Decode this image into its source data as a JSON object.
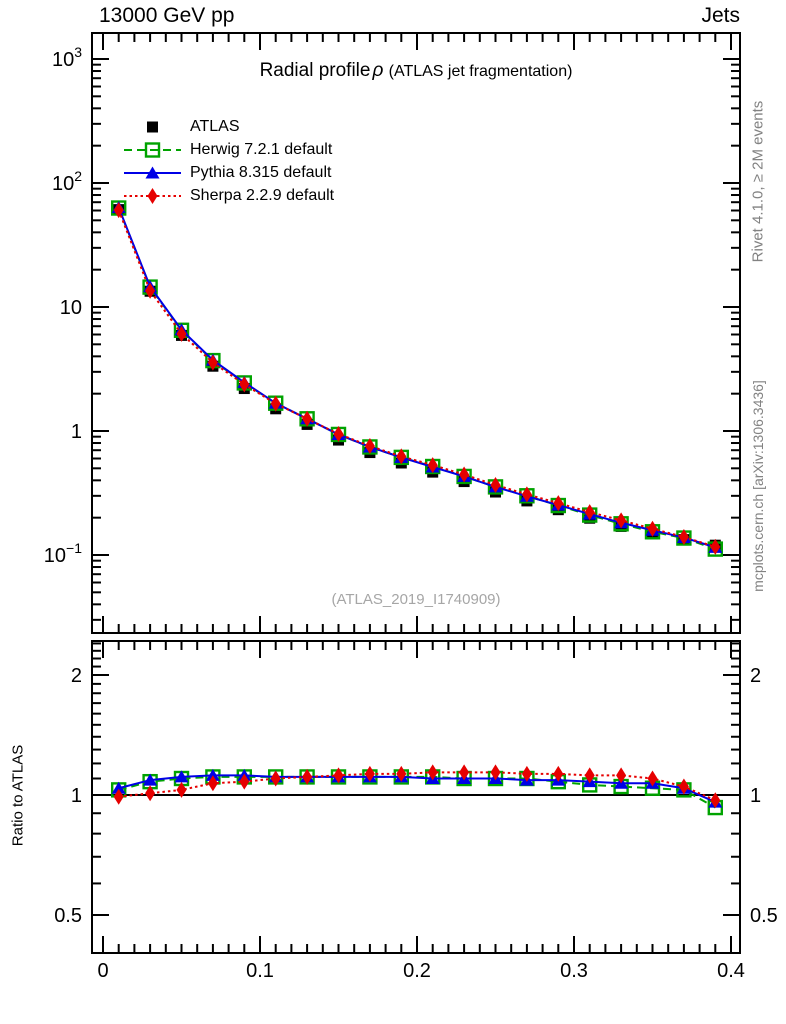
{
  "header": {
    "left": "13000 GeV pp",
    "right": "Jets"
  },
  "plot_title": {
    "main": "Radial profile",
    "symbol": "ρ",
    "paren": "(ATLAS jet fragmentation)"
  },
  "watermark": "(ATLAS_2019_I1740909)",
  "side_notes": {
    "rivet": "Rivet 4.1.0, ≥ 2M events",
    "mcplots": "mcplots.cern.ch [arXiv:1306.3436]"
  },
  "legend": {
    "items": [
      {
        "label": "ATLAS",
        "color": "#000000",
        "marker": "square-filled",
        "line": "none"
      },
      {
        "label": "Herwig 7.2.1 default",
        "color": "#00a300",
        "marker": "square-open",
        "line": "dashed"
      },
      {
        "label": "Pythia 8.315 default",
        "color": "#0000e6",
        "marker": "triangle-filled",
        "line": "solid"
      },
      {
        "label": "Sherpa 2.2.9 default",
        "color": "#e60000",
        "marker": "diamond-filled",
        "line": "dotted"
      }
    ]
  },
  "chart_data": {
    "type": "line",
    "title": "Radial profile ρ (ATLAS jet fragmentation)",
    "xlabel": "",
    "ylabel": "",
    "yscale": "log",
    "ylim": [
      0.0235,
      1620
    ],
    "xlim": [
      -0.007,
      0.4057
    ],
    "x": [
      0.01,
      0.03,
      0.05,
      0.07,
      0.09,
      0.11,
      0.13,
      0.15,
      0.17,
      0.19,
      0.21,
      0.23,
      0.25,
      0.27,
      0.29,
      0.31,
      0.33,
      0.35,
      0.37,
      0.39
    ],
    "xticks": [
      {
        "value": 0.0,
        "label": "0"
      },
      {
        "value": 0.1,
        "label": "0.1"
      },
      {
        "value": 0.2,
        "label": "0.2"
      },
      {
        "value": 0.3,
        "label": "0.3"
      },
      {
        "value": 0.4,
        "label": "0.4"
      }
    ],
    "x_minor_step": 0.01,
    "yticks": [
      {
        "value": 1000,
        "base": "10",
        "exp": "3"
      },
      {
        "value": 100,
        "base": "10",
        "exp": "2"
      },
      {
        "value": 10,
        "base": "10",
        "exp": ""
      },
      {
        "value": 1,
        "base": "1",
        "exp": ""
      },
      {
        "value": 0.1,
        "base": "10",
        "exp": "−1"
      }
    ],
    "series": [
      {
        "name": "ATLAS",
        "color": "#000000",
        "marker": "square-filled",
        "line": "none",
        "values": [
          61,
          13.4,
          5.9,
          3.33,
          2.2,
          1.51,
          1.13,
          0.845,
          0.67,
          0.552,
          0.466,
          0.391,
          0.322,
          0.273,
          0.232,
          0.198,
          0.17,
          0.148,
          0.133,
          0.12
        ]
      },
      {
        "name": "Herwig 7.2.1 default",
        "color": "#00a300",
        "marker": "square-open",
        "line": "dashed",
        "ratio_to_atlas": [
          1.03,
          1.08,
          1.1,
          1.11,
          1.11,
          1.11,
          1.11,
          1.11,
          1.11,
          1.11,
          1.11,
          1.1,
          1.1,
          1.1,
          1.08,
          1.06,
          1.05,
          1.04,
          1.03,
          0.93
        ]
      },
      {
        "name": "Pythia 8.315 default",
        "color": "#0000e6",
        "marker": "triangle-filled",
        "line": "solid",
        "ratio_to_atlas": [
          1.04,
          1.09,
          1.11,
          1.12,
          1.12,
          1.11,
          1.11,
          1.11,
          1.11,
          1.11,
          1.1,
          1.1,
          1.1,
          1.09,
          1.09,
          1.08,
          1.07,
          1.07,
          1.04,
          0.96
        ]
      },
      {
        "name": "Sherpa 2.2.9 default",
        "color": "#e60000",
        "marker": "diamond-filled",
        "line": "dotted",
        "ratio_to_atlas": [
          0.99,
          1.01,
          1.03,
          1.07,
          1.08,
          1.1,
          1.11,
          1.12,
          1.13,
          1.13,
          1.14,
          1.14,
          1.14,
          1.13,
          1.13,
          1.12,
          1.12,
          1.1,
          1.05,
          0.97
        ]
      }
    ],
    "ratio_panel": {
      "ylabel": "Ratio to ATLAS",
      "yscale": "log",
      "ylim": [
        0.402,
        2.43
      ],
      "reference_line": 1,
      "yticks": [
        {
          "value": 2,
          "label": "2"
        },
        {
          "value": 1,
          "label": "1"
        },
        {
          "value": 0.5,
          "label": "0.5"
        }
      ]
    }
  }
}
